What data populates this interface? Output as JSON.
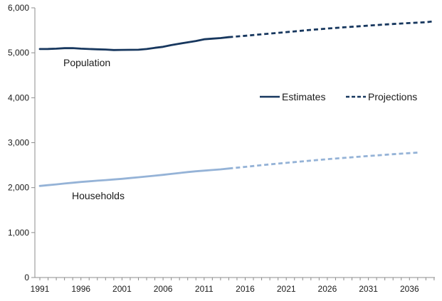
{
  "chart_data": {
    "type": "line",
    "title": "",
    "xlabel": "",
    "ylabel": "",
    "xlim": [
      1991,
      2039
    ],
    "ylim": [
      0,
      6000
    ],
    "y_ticks": [
      0,
      1000,
      2000,
      3000,
      4000,
      5000,
      6000
    ],
    "y_tick_labels": [
      "0",
      "1,000",
      "2,000",
      "3,000",
      "4,000",
      "5,000",
      "6,000"
    ],
    "x_ticks": [
      1991,
      1996,
      2001,
      2006,
      2011,
      2016,
      2021,
      2026,
      2031,
      2036
    ],
    "x_tick_labels": [
      "1991",
      "1996",
      "2001",
      "2006",
      "2011",
      "2016",
      "2021",
      "2026",
      "2031",
      "2036"
    ],
    "grid": false,
    "legend": {
      "position": "center-right",
      "entries": [
        {
          "label": "Estimates",
          "style": "solid"
        },
        {
          "label": "Projections",
          "style": "dashed"
        }
      ]
    },
    "series": [
      {
        "name": "Population",
        "color": "#17375e",
        "estimates": {
          "x": [
            1991,
            1992,
            1993,
            1994,
            1995,
            1996,
            1997,
            1998,
            1999,
            2000,
            2001,
            2002,
            2003,
            2004,
            2005,
            2006,
            2007,
            2008,
            2009,
            2010,
            2011,
            2012,
            2013,
            2014
          ],
          "values": [
            5083,
            5085,
            5092,
            5102,
            5104,
            5092,
            5083,
            5077,
            5072,
            5062,
            5064,
            5066,
            5068,
            5084,
            5110,
            5133,
            5170,
            5202,
            5232,
            5262,
            5300,
            5314,
            5327,
            5348
          ]
        },
        "projections": {
          "x": [
            2014,
            2016,
            2018,
            2020,
            2022,
            2024,
            2026,
            2028,
            2030,
            2032,
            2034,
            2036,
            2038,
            2039
          ],
          "values": [
            5348,
            5378,
            5411,
            5443,
            5476,
            5509,
            5539,
            5566,
            5592,
            5617,
            5640,
            5661,
            5680,
            5700
          ]
        }
      },
      {
        "name": "Households",
        "color": "#95b3d7",
        "estimates": {
          "x": [
            1991,
            1992,
            1993,
            1994,
            1995,
            1996,
            1997,
            1998,
            1999,
            2000,
            2001,
            2002,
            2003,
            2004,
            2005,
            2006,
            2007,
            2008,
            2009,
            2010,
            2011,
            2012,
            2013,
            2014
          ],
          "values": [
            2037,
            2055,
            2073,
            2091,
            2108,
            2126,
            2141,
            2155,
            2168,
            2182,
            2196,
            2213,
            2230,
            2248,
            2266,
            2284,
            2305,
            2326,
            2346,
            2363,
            2378,
            2392,
            2406,
            2425
          ]
        },
        "projections": {
          "x": [
            2014,
            2016,
            2018,
            2020,
            2022,
            2024,
            2026,
            2028,
            2030,
            2032,
            2034,
            2036,
            2037
          ],
          "values": [
            2425,
            2462,
            2499,
            2535,
            2568,
            2601,
            2632,
            2661,
            2689,
            2716,
            2743,
            2768,
            2780
          ]
        }
      }
    ]
  }
}
